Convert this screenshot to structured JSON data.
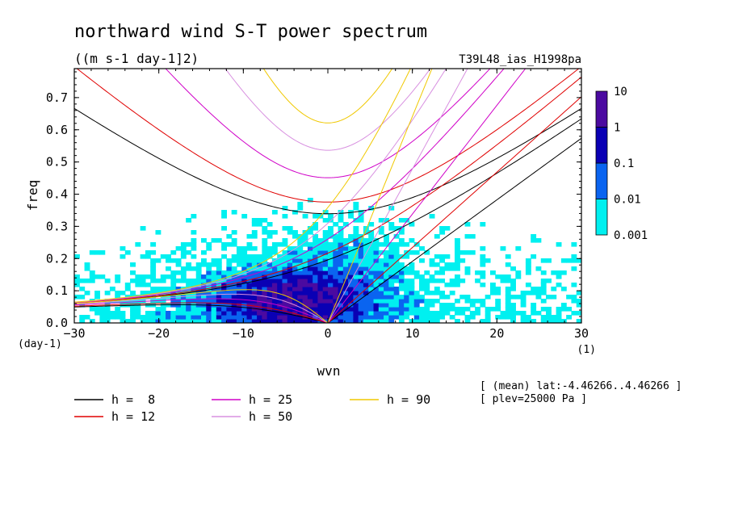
{
  "chart_data": {
    "type": "heatmap",
    "title": "northward wind S-T power spectrum",
    "units": "((m s-1 day-1]2)",
    "run_label": "T39L48_ias_H1998pa",
    "xlabel": "wvn",
    "ylabel": "freq",
    "x_unit": "(1)",
    "y_unit": "(day-1)",
    "xlim": [
      -30,
      30
    ],
    "ylim": [
      0,
      0.79
    ],
    "xticks": [
      -30,
      -20,
      -10,
      0,
      10,
      20,
      30
    ],
    "xtick_labels": [
      "-30",
      "-20",
      "-10",
      "0",
      "10",
      "20",
      "30"
    ],
    "yticks": [
      0,
      0.1,
      0.2,
      0.3,
      0.4,
      0.5,
      0.6,
      0.7
    ],
    "ytick_labels": [
      "0.0",
      "0.1",
      "0.2",
      "0.3",
      "0.4",
      "0.5",
      "0.6",
      "0.7"
    ],
    "colorbar": {
      "levels": [
        0.001,
        0.01,
        0.1,
        1,
        10
      ],
      "labels": [
        "0.001",
        "0.01",
        "0.1",
        "1",
        "10"
      ],
      "colors": [
        "#00f0f0",
        "#0a64f0",
        "#0a00b4",
        "#4b0aa0"
      ]
    },
    "series": [
      {
        "name": "h =  8",
        "h": 8,
        "color": "#000000"
      },
      {
        "name": "h = 12",
        "h": 12,
        "color": "#e00000"
      },
      {
        "name": "h = 25",
        "h": 25,
        "color": "#d000c8"
      },
      {
        "name": "h = 50",
        "h": 50,
        "color": "#d890e0"
      },
      {
        "name": "h = 90",
        "h": 90,
        "color": "#f0c800"
      }
    ],
    "annotation_lines": [
      "[ (mean) lat:-4.46266..4.46266 ]",
      "[ plev=25000 Pa ]"
    ]
  }
}
